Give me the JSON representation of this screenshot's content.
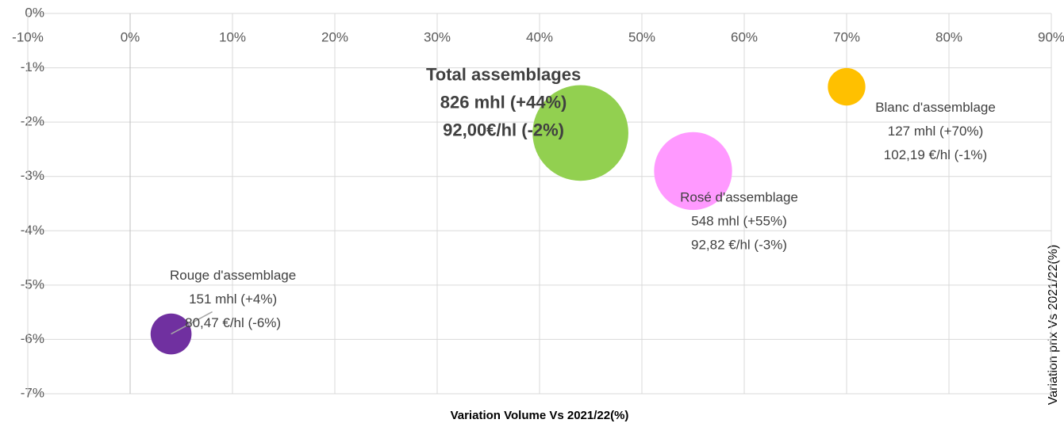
{
  "chart_data": {
    "type": "bubble",
    "xlabel": "Variation Volume Vs 2021/22(%)",
    "ylabel": "Variation prix Vs 2021/22(%)",
    "xlim": [
      -10,
      90
    ],
    "xticks": [
      {
        "value": -10,
        "label": "-10%"
      },
      {
        "value": 0,
        "label": "0%"
      },
      {
        "value": 10,
        "label": "10%"
      },
      {
        "value": 20,
        "label": "20%"
      },
      {
        "value": 30,
        "label": "30%"
      },
      {
        "value": 40,
        "label": "40%"
      },
      {
        "value": 50,
        "label": "50%"
      },
      {
        "value": 60,
        "label": "60%"
      },
      {
        "value": 70,
        "label": "70%"
      },
      {
        "value": 80,
        "label": "80%"
      },
      {
        "value": 90,
        "label": "90%"
      }
    ],
    "ylim": [
      -7,
      0
    ],
    "yticks": [
      {
        "value": -7,
        "label": "-7%"
      },
      {
        "value": -6,
        "label": "-6%"
      },
      {
        "value": -5,
        "label": "-5%"
      },
      {
        "value": -4,
        "label": "-4%"
      },
      {
        "value": -3,
        "label": "-3%"
      },
      {
        "value": -2,
        "label": "-2%"
      },
      {
        "value": -1,
        "label": "-1%"
      },
      {
        "value": 0,
        "label": "0%"
      }
    ],
    "grid": true,
    "series": [
      {
        "name": "Rouge d'assemblage",
        "color": "#7030a0",
        "x": [
          4
        ],
        "values": [
          -5.9
        ],
        "size": [
          151
        ],
        "value_labels": [
          "151 mhl (+4%)",
          "80,47 €/hl (-6%)"
        ]
      },
      {
        "name": "Total assemblages",
        "color": "#92d050",
        "x": [
          44
        ],
        "values": [
          -2.2
        ],
        "size": [
          826
        ],
        "value_labels": [
          "826 mhl (+44%)",
          "92,00€/hl (-2%)"
        ]
      },
      {
        "name": "Rosé d'assemblage",
        "color": "#ff99ff",
        "x": [
          55
        ],
        "values": [
          -2.9
        ],
        "size": [
          548
        ],
        "value_labels": [
          "548 mhl (+55%)",
          "92,82 €/hl (-3%)"
        ]
      },
      {
        "name": "Blanc d'assemblage",
        "color": "#ffc000",
        "x": [
          70
        ],
        "values": [
          -1.35
        ],
        "size": [
          127
        ],
        "value_labels": [
          "127 mhl (+70%)",
          "102,19 €/hl (-1%)"
        ]
      }
    ]
  }
}
